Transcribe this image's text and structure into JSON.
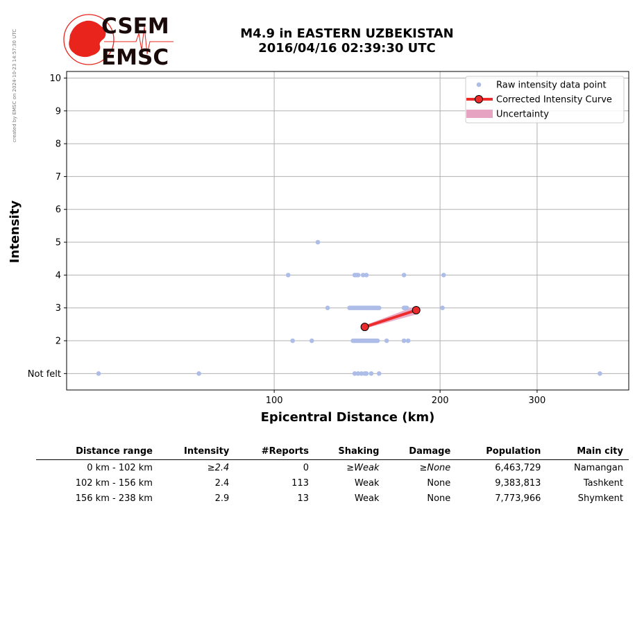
{
  "credit": "created by EMSC on 2024-10-23 14:57:30 UTC",
  "logo": {
    "top_text": "CSEM",
    "bottom_text": "EMSC",
    "color": "#e8241c",
    "text_color": "#1a0a0a"
  },
  "title": {
    "line1": "M4.9 in EASTERN UZBEKISTAN",
    "line2": "2016/04/16 02:39:30 UTC"
  },
  "chart_data": {
    "type": "scatter",
    "xlabel": "Epicentral Distance (km)",
    "ylabel": "Intensity",
    "x_scale": "log",
    "xlim": [
      42,
      440
    ],
    "ylim": [
      0.5,
      10.2
    ],
    "x_ticks": [
      100,
      200,
      300
    ],
    "y_ticks": [
      {
        "value": 1,
        "label": "Not felt"
      },
      {
        "value": 2,
        "label": "2"
      },
      {
        "value": 3,
        "label": "3"
      },
      {
        "value": 4,
        "label": "4"
      },
      {
        "value": 5,
        "label": "5"
      },
      {
        "value": 6,
        "label": "6"
      },
      {
        "value": 7,
        "label": "7"
      },
      {
        "value": 8,
        "label": "8"
      },
      {
        "value": 9,
        "label": "9"
      },
      {
        "value": 10,
        "label": "10"
      }
    ],
    "grid": true,
    "legend_position": "top-right",
    "colors": {
      "raw": "#aebde8",
      "curve": "#ee2b2b",
      "uncertainty": "#e6a4c2"
    },
    "legend": [
      {
        "key": "raw",
        "label": "Raw intensity data point"
      },
      {
        "key": "curve",
        "label": "Corrected Intensity Curve"
      },
      {
        "key": "uncertainty",
        "label": "Uncertainty"
      }
    ],
    "raw_points": [
      [
        48,
        1
      ],
      [
        73,
        1
      ],
      [
        140,
        1
      ],
      [
        142,
        1
      ],
      [
        144,
        1
      ],
      [
        146,
        1
      ],
      [
        147,
        1
      ],
      [
        150,
        1
      ],
      [
        155,
        1
      ],
      [
        390,
        1
      ],
      [
        108,
        2
      ],
      [
        117,
        2
      ],
      [
        139,
        2
      ],
      [
        140,
        2
      ],
      [
        141,
        2
      ],
      [
        142,
        2
      ],
      [
        143,
        2
      ],
      [
        144,
        2
      ],
      [
        145,
        2
      ],
      [
        146,
        2
      ],
      [
        147,
        2
      ],
      [
        148,
        2
      ],
      [
        149,
        2
      ],
      [
        150,
        2
      ],
      [
        151,
        2
      ],
      [
        152,
        2
      ],
      [
        153,
        2
      ],
      [
        154,
        2
      ],
      [
        160,
        2
      ],
      [
        172,
        2
      ],
      [
        175,
        2
      ],
      [
        125,
        3
      ],
      [
        137,
        3
      ],
      [
        138,
        3
      ],
      [
        139,
        3
      ],
      [
        140,
        3
      ],
      [
        141,
        3
      ],
      [
        142,
        3
      ],
      [
        143,
        3
      ],
      [
        144,
        3
      ],
      [
        145,
        3
      ],
      [
        146,
        3
      ],
      [
        147,
        3
      ],
      [
        148,
        3
      ],
      [
        149,
        3
      ],
      [
        150,
        3
      ],
      [
        151,
        3
      ],
      [
        152,
        3
      ],
      [
        153,
        3
      ],
      [
        154,
        3
      ],
      [
        155,
        3
      ],
      [
        172,
        3
      ],
      [
        173,
        3
      ],
      [
        174,
        3
      ],
      [
        202,
        3
      ],
      [
        106,
        4
      ],
      [
        140,
        4
      ],
      [
        141,
        4
      ],
      [
        142,
        4
      ],
      [
        145,
        4
      ],
      [
        147,
        4
      ],
      [
        172,
        4
      ],
      [
        203,
        4
      ],
      [
        120,
        5
      ]
    ],
    "curve": {
      "x": [
        146,
        181
      ],
      "y": [
        2.42,
        2.93
      ]
    },
    "uncertainty": {
      "x": [
        146,
        181
      ],
      "lower": [
        2.37,
        2.8
      ],
      "upper": [
        2.47,
        3.06
      ]
    }
  },
  "table": {
    "headers": [
      "Distance range",
      "Intensity",
      "#Reports",
      "Shaking",
      "Damage",
      "Population",
      "Main city"
    ],
    "rows": [
      {
        "range": "0 km -  102 km",
        "intensity": "≥2.4",
        "reports": "0",
        "shaking": "≥Weak",
        "damage": "≥None",
        "population": "6,463,729",
        "city": "Namangan",
        "italic": true
      },
      {
        "range": "102 km -  156 km",
        "intensity": "2.4",
        "reports": "113",
        "shaking": "Weak",
        "damage": "None",
        "population": "9,383,813",
        "city": "Tashkent",
        "italic": false
      },
      {
        "range": "156 km -  238 km",
        "intensity": "2.9",
        "reports": "13",
        "shaking": "Weak",
        "damage": "None",
        "population": "7,773,966",
        "city": "Shymkent",
        "italic": false
      }
    ]
  }
}
